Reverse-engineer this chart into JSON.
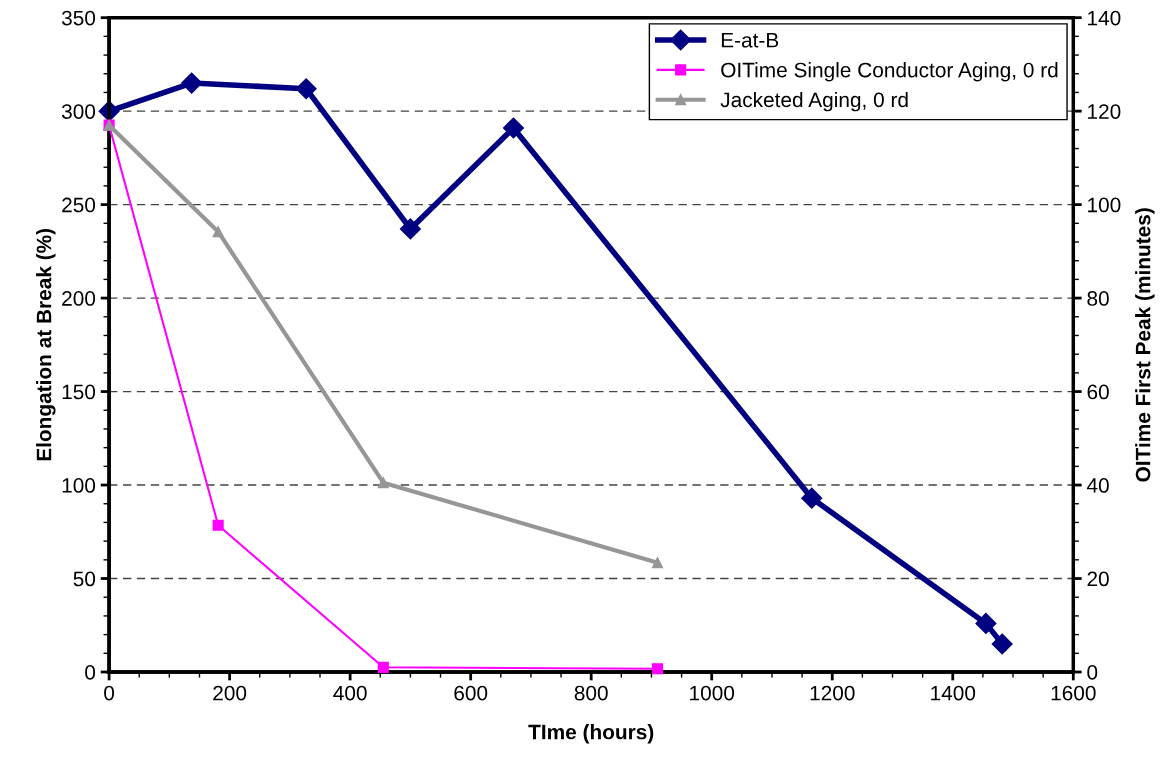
{
  "chart_data": {
    "type": "line",
    "xlabel": "TIme (hours)",
    "ylabel": "Elongation at Break (%)",
    "y2label": "OITime First Peak (minutes)",
    "xlim": [
      0,
      1600
    ],
    "xticks": [
      0,
      200,
      400,
      600,
      800,
      1000,
      1200,
      1400,
      1600
    ],
    "ylim": [
      0,
      350
    ],
    "yticks": [
      0,
      50,
      100,
      150,
      200,
      250,
      300,
      350
    ],
    "y2lim": [
      0,
      140
    ],
    "y2ticks": [
      0,
      20,
      40,
      60,
      80,
      100,
      120,
      140
    ],
    "grid": "y",
    "legend": "top right",
    "series": [
      {
        "name": "E-at-B",
        "color": "#000080",
        "marker": "diamond",
        "x": [
          0,
          137,
          327,
          500,
          671,
          1166,
          1455,
          1482
        ],
        "values": [
          300,
          315,
          312,
          237,
          291,
          93,
          26,
          15
        ]
      },
      {
        "name": "OITime Single Conductor Aging, 0 rd",
        "color": "#ff00ff",
        "marker": "square",
        "axis": "y2",
        "x": [
          0,
          181,
          455,
          910
        ],
        "values": [
          117,
          31.4,
          1,
          0.7
        ]
      },
      {
        "name": "Jacketed Aging, 0 rd",
        "color": "#969696",
        "marker": "triangle",
        "axis": "y2",
        "x": [
          0,
          181,
          455,
          910
        ],
        "values": [
          117,
          94.2,
          40.5,
          23.4
        ]
      }
    ]
  }
}
